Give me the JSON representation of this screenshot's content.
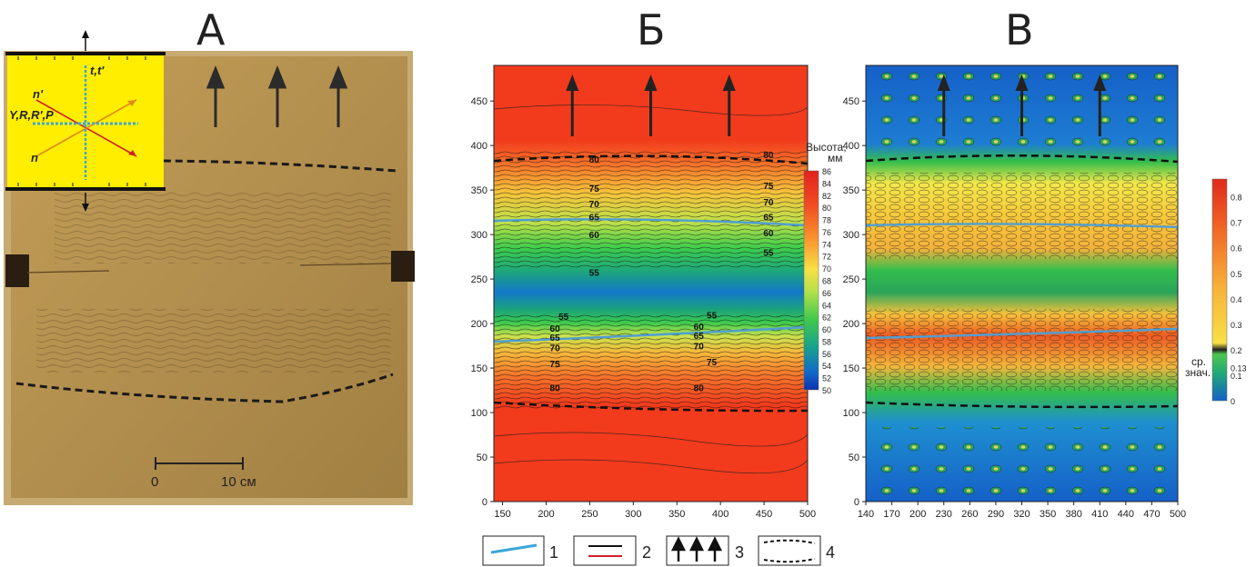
{
  "panels": {
    "A": {
      "letter": "А",
      "scale_start": "0",
      "scale_end": "10 см",
      "inset": {
        "top_label": "t,t'",
        "n_prime": "n'",
        "n": "n",
        "axis_label": "Y,R,R',P"
      }
    },
    "B": {
      "letter": "Б",
      "colorbar_title": "Высота,",
      "colorbar_unit": "мм"
    },
    "V": {
      "letter": "В",
      "colorbar_mean_label": "ср.",
      "colorbar_mean_label2": "знач."
    }
  },
  "legend": {
    "items": [
      "1",
      "2",
      "3",
      "4"
    ]
  },
  "colors": {
    "sand": "#b4924f",
    "inset_yellow": "#ffee00",
    "profile_line": "#3aa7d6",
    "fault_red": "#d0202a"
  },
  "chart_data": [
    {
      "type": "heatmap",
      "panel": "Б",
      "x_ticks": [
        "150",
        "200",
        "250",
        "300",
        "350",
        "400",
        "450",
        "500"
      ],
      "y_ticks": [
        "0",
        "50",
        "100",
        "150",
        "200",
        "250",
        "300",
        "350",
        "400",
        "450"
      ],
      "xlim": [
        140,
        500
      ],
      "ylim": [
        0,
        490
      ],
      "colorbar_ticks": [
        "86",
        "84",
        "82",
        "80",
        "78",
        "76",
        "74",
        "72",
        "70",
        "68",
        "66",
        "64",
        "62",
        "60",
        "58",
        "56",
        "54",
        "52",
        "50"
      ],
      "colorbar_range": [
        50,
        86
      ],
      "contour_labels": [
        {
          "text": "80",
          "x": 255,
          "y": 385
        },
        {
          "text": "80",
          "x": 455,
          "y": 390
        },
        {
          "text": "75",
          "x": 255,
          "y": 352
        },
        {
          "text": "75",
          "x": 455,
          "y": 355
        },
        {
          "text": "70",
          "x": 255,
          "y": 335
        },
        {
          "text": "70",
          "x": 455,
          "y": 337
        },
        {
          "text": "65",
          "x": 255,
          "y": 320
        },
        {
          "text": "65",
          "x": 455,
          "y": 320
        },
        {
          "text": "60",
          "x": 255,
          "y": 300
        },
        {
          "text": "60",
          "x": 455,
          "y": 302
        },
        {
          "text": "55",
          "x": 255,
          "y": 258
        },
        {
          "text": "55",
          "x": 455,
          "y": 280
        },
        {
          "text": "55",
          "x": 220,
          "y": 208
        },
        {
          "text": "55",
          "x": 390,
          "y": 210
        },
        {
          "text": "60",
          "x": 210,
          "y": 195
        },
        {
          "text": "60",
          "x": 375,
          "y": 197
        },
        {
          "text": "65",
          "x": 210,
          "y": 185
        },
        {
          "text": "65",
          "x": 375,
          "y": 187
        },
        {
          "text": "70",
          "x": 210,
          "y": 173
        },
        {
          "text": "70",
          "x": 375,
          "y": 175
        },
        {
          "text": "75",
          "x": 210,
          "y": 155
        },
        {
          "text": "75",
          "x": 390,
          "y": 157
        },
        {
          "text": "80",
          "x": 210,
          "y": 128
        },
        {
          "text": "80",
          "x": 375,
          "y": 128
        }
      ],
      "arrows_x": [
        230,
        320,
        410
      ]
    },
    {
      "type": "heatmap",
      "panel": "В",
      "x_ticks": [
        "140",
        "170",
        "200",
        "230",
        "260",
        "290",
        "320",
        "350",
        "380",
        "410",
        "440",
        "470",
        "500"
      ],
      "y_ticks": [
        "0",
        "50",
        "100",
        "150",
        "200",
        "250",
        "300",
        "350",
        "400",
        "450"
      ],
      "xlim": [
        140,
        500
      ],
      "ylim": [
        0,
        490
      ],
      "colorbar_ticks": [
        "0.8",
        "0.7",
        "0.6",
        "0.5",
        "0.4",
        "0.3",
        "0.2",
        "0.13",
        "0.1",
        "0"
      ],
      "colorbar_range": [
        0,
        0.87
      ],
      "arrows_x": [
        230,
        320,
        410
      ]
    }
  ]
}
